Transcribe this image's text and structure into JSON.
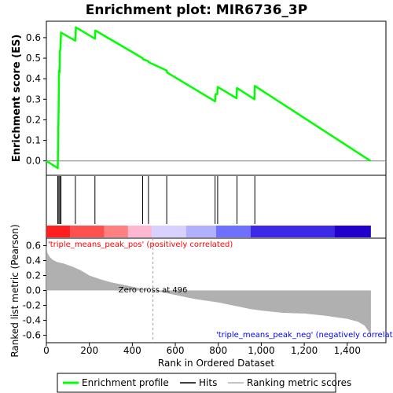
{
  "chart_data": {
    "type": "line",
    "title": "Enrichment plot: MIR6736_3P",
    "top_panel": {
      "ylabel": "Enrichment score (ES)",
      "ylim": [
        -0.07,
        0.68
      ],
      "yticks": [
        "0.0",
        "0.1",
        "0.2",
        "0.3",
        "0.4",
        "0.5",
        "0.6"
      ],
      "ytick_values": [
        0.0,
        0.1,
        0.2,
        0.3,
        0.4,
        0.5,
        0.6
      ],
      "series": {
        "name": "Enrichment profile",
        "color": "#00ff00",
        "x": [
          0,
          53,
          55,
          57,
          59,
          61,
          63,
          66,
          68,
          135,
          137,
          226,
          228,
          448,
          450,
          475,
          477,
          560,
          562,
          785,
          787,
          795,
          797,
          885,
          887,
          968,
          970,
          1508
        ],
        "y": [
          0.0,
          -0.035,
          0.1,
          0.25,
          0.44,
          0.43,
          0.53,
          0.55,
          0.625,
          0.585,
          0.65,
          0.595,
          0.635,
          0.5,
          0.495,
          0.485,
          0.48,
          0.44,
          0.43,
          0.29,
          0.325,
          0.325,
          0.36,
          0.305,
          0.355,
          0.3,
          0.365,
          0.0
        ]
      }
    },
    "hits_panel": {
      "hits_label": "Hits",
      "hit_positions": [
        53,
        58,
        63,
        68,
        135,
        226,
        448,
        475,
        560,
        785,
        797,
        887,
        970
      ]
    },
    "bottom_panel": {
      "ylabel": "Ranked list metric (Pearson)",
      "ylim": [
        -0.7,
        0.7
      ],
      "yticks": [
        "0.6",
        "0.4",
        "0.2",
        "0.0",
        "-0.2",
        "-0.4",
        "-0.6"
      ],
      "ytick_values": [
        0.6,
        0.4,
        0.2,
        0.0,
        -0.2,
        -0.4,
        -0.6
      ],
      "series": {
        "name": "Ranking metric scores",
        "color": "#b0b0b0",
        "x": [
          0,
          5,
          15,
          30,
          50,
          80,
          120,
          160,
          200,
          250,
          300,
          350,
          400,
          450,
          496,
          550,
          600,
          650,
          700,
          750,
          800,
          850,
          900,
          950,
          1000,
          1100,
          1200,
          1300,
          1350,
          1400,
          1450,
          1480,
          1500,
          1510
        ],
        "y": [
          0.6,
          0.5,
          0.45,
          0.41,
          0.38,
          0.36,
          0.32,
          0.27,
          0.2,
          0.15,
          0.11,
          0.08,
          0.05,
          0.02,
          0.0,
          -0.03,
          -0.06,
          -0.09,
          -0.12,
          -0.14,
          -0.16,
          -0.19,
          -0.22,
          -0.25,
          -0.27,
          -0.3,
          -0.31,
          -0.34,
          -0.36,
          -0.38,
          -0.42,
          -0.47,
          -0.55,
          -0.63
        ]
      },
      "pos_label": "'triple_means_peak_pos' (positively correlated)",
      "pos_label_color": "#ff0000",
      "neg_label": "'triple_means_peak_neg' (negatively correlated)",
      "neg_label_color": "#0000ff",
      "zero_cross_label": "Zero cross at 496",
      "zero_cross_x": 496
    },
    "xlabel": "Rank in Ordered Dataset",
    "xlim": [
      0,
      1580
    ],
    "xticks": [
      "0",
      "200",
      "400",
      "600",
      "800",
      "1,000",
      "1,200",
      "1,400"
    ],
    "xtick_values": [
      0,
      200,
      400,
      600,
      800,
      1000,
      1200,
      1400
    ],
    "legend": {
      "placement": "bottom",
      "items": [
        {
          "label": "Enrichment profile",
          "color": "#00ff00"
        },
        {
          "label": "Hits",
          "color": "#000000"
        },
        {
          "label": "Ranking metric scores",
          "color": "#b0b0b0"
        }
      ]
    },
    "color_bar": {
      "colors": [
        "#ff1f1f",
        "#ff5050",
        "#ff8080",
        "#ffb8d0",
        "#d8d0ff",
        "#b0b0ff",
        "#7070ff",
        "#3c28e6",
        "#2200cc"
      ],
      "stops": [
        0,
        110,
        270,
        380,
        490,
        650,
        790,
        950,
        1340,
        1510
      ]
    }
  }
}
